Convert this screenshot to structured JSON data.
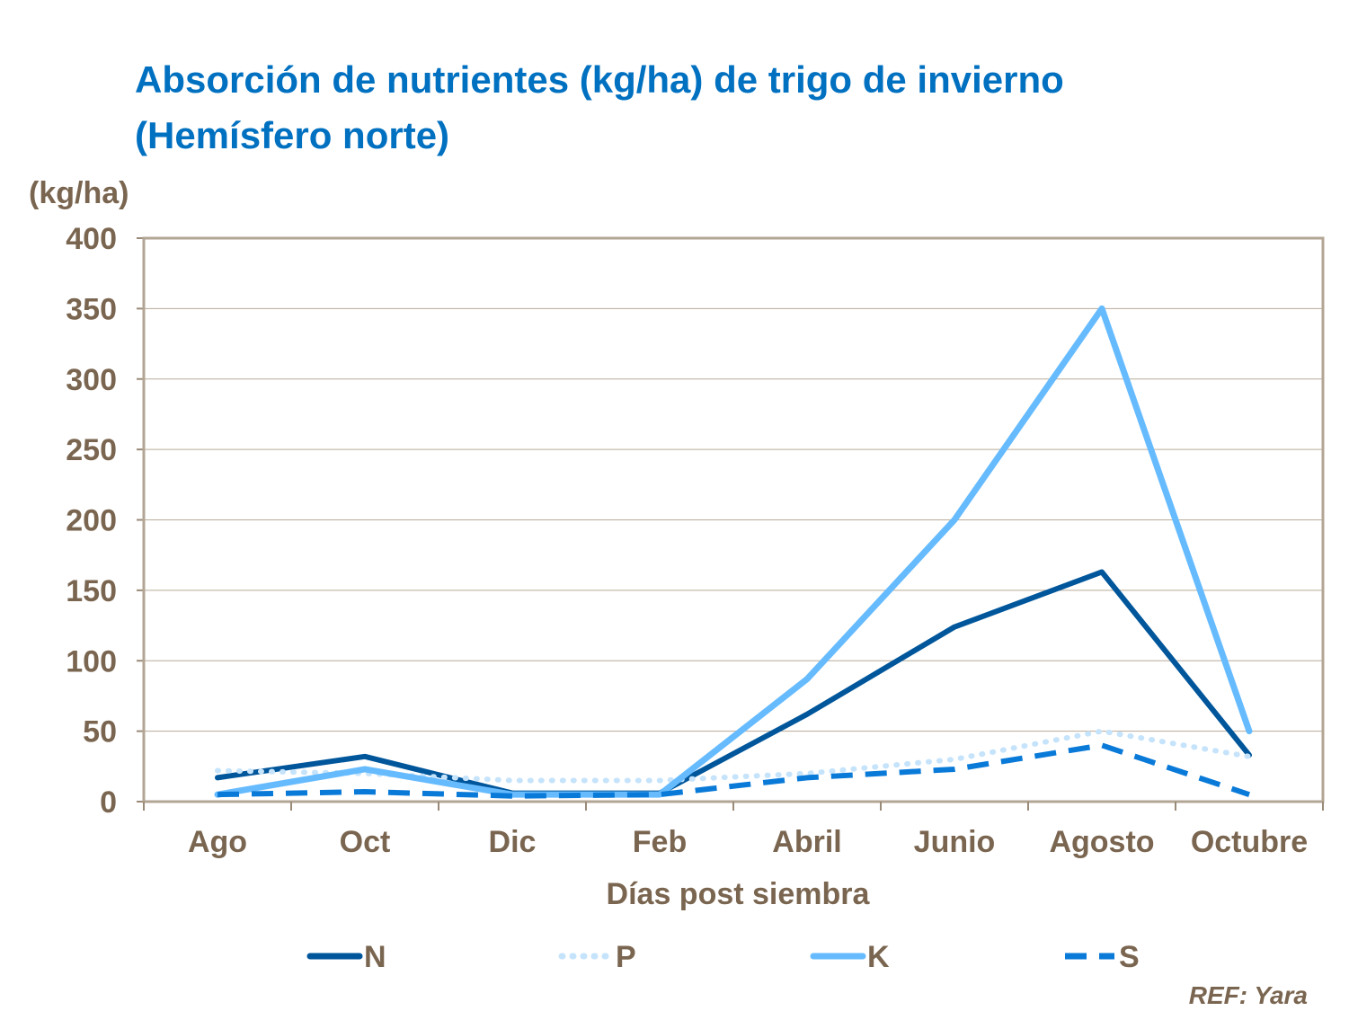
{
  "chart_data": {
    "type": "line",
    "title": "Absorción de nutrientes (kg/ha) de trigo de invierno (Hemísfero norte)",
    "ylabel": "(kg/ha)",
    "xlabel": "Días post siembra",
    "categories": [
      "Ago",
      "Oct",
      "Dic",
      "Feb",
      "Abril",
      "Junio",
      "Agosto",
      "Octubre"
    ],
    "ylim": [
      0,
      400
    ],
    "yticks": [
      0,
      50,
      100,
      150,
      200,
      250,
      300,
      350,
      400
    ],
    "grid": true,
    "legend": "bottom",
    "series": [
      {
        "name": "N",
        "color": "#00569b",
        "style": "solid",
        "values": [
          17,
          32,
          6,
          6,
          62,
          124,
          163,
          33
        ]
      },
      {
        "name": "P",
        "color": "#c5e3fb",
        "style": "dotted",
        "values": [
          22,
          20,
          15,
          15,
          20,
          30,
          50,
          32
        ]
      },
      {
        "name": "K",
        "color": "#66bbff",
        "style": "solid",
        "values": [
          5,
          23,
          5,
          5,
          87,
          200,
          350,
          50
        ]
      },
      {
        "name": "S",
        "color": "#0a7ad8",
        "style": "dashed",
        "values": [
          5,
          7,
          4,
          5,
          17,
          23,
          40,
          5
        ]
      }
    ]
  },
  "reference": "REF: Yara"
}
